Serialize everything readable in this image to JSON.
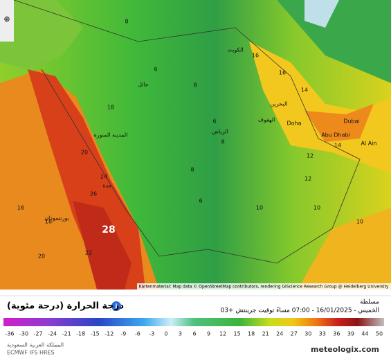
{
  "map": {
    "cities": [
      "الكويت",
      "حائل",
      "المدينة المنورة",
      "الرياض",
      "جدة",
      "بورتسودان",
      "Doha",
      "Abu Dhabi",
      "Dubai",
      "Al Ain",
      "الهفوف",
      "البحرين"
    ],
    "temps": [
      28,
      8,
      6,
      8,
      6,
      8,
      8,
      6,
      10,
      12,
      10,
      14,
      16,
      16,
      14,
      18,
      20,
      24,
      26,
      20,
      18,
      16,
      22,
      12,
      10
    ],
    "attribution": "Kartenmaterial: Map data © OpenStreetMap contributors, rendering GIScience Research Group @ Heidelberg University"
  },
  "panel": {
    "title": "درجة الحرارة (درجة مئوية)",
    "location": "مسلطة",
    "datetime": "الخميس - 16/01/2025 - 07:00 مساءً توقيت جرينتش +03",
    "region": "المملكة العربية السعودية",
    "model": "ECMWF IFS HRES",
    "brand": "meteologix.com"
  },
  "colorbar": {
    "ticks": [
      -36,
      -30,
      -27,
      -24,
      -21,
      -18,
      -15,
      -12,
      -9,
      -6,
      -3,
      0,
      3,
      6,
      9,
      12,
      15,
      18,
      21,
      24,
      27,
      30,
      33,
      36,
      39,
      44,
      50
    ]
  }
}
